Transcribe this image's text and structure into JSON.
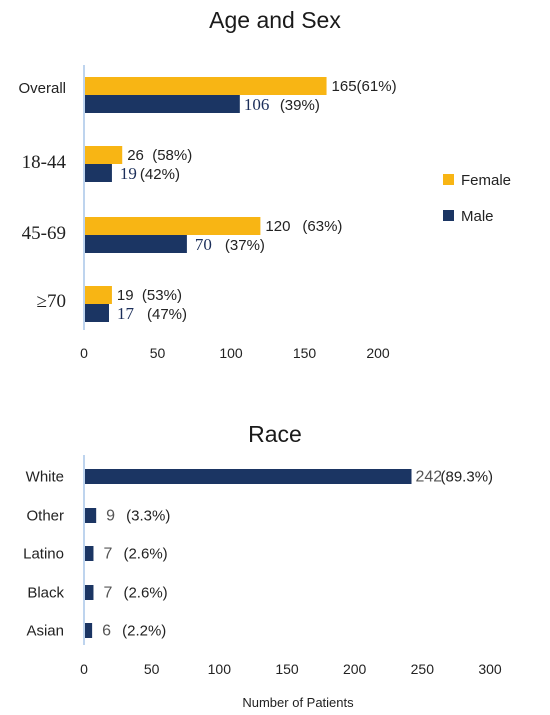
{
  "colors": {
    "female": "#f8b514",
    "male": "#1b3563",
    "axis": "#a9c6e8"
  },
  "chart_data": [
    {
      "type": "bar",
      "orientation": "horizontal",
      "title": "Age and Sex",
      "categories": [
        "Overall",
        "18-44",
        "45-69",
        "≥70"
      ],
      "series": [
        {
          "name": "Female",
          "values": [
            165,
            26,
            120,
            19
          ],
          "labels": [
            "(61%)",
            "(58%)",
            "(63%)",
            "(53%)"
          ]
        },
        {
          "name": "Male",
          "values": [
            106,
            19,
            70,
            17
          ],
          "labels": [
            "(39%)",
            "(42%)",
            "(37%)",
            "(47%)"
          ]
        }
      ],
      "xticks": [
        "0",
        "50",
        "100",
        "150",
        "200"
      ],
      "xlim": [
        0,
        200
      ],
      "legend": "right"
    },
    {
      "type": "bar",
      "orientation": "horizontal",
      "title": "Race",
      "categories": [
        "White",
        "Other",
        "Latino",
        "Black",
        "Asian"
      ],
      "values": [
        242,
        9,
        7,
        7,
        6
      ],
      "labels": [
        "(89.3%)",
        "(3.3%)",
        "(2.6%)",
        "(2.6%)",
        "(2.2%)"
      ],
      "xticks": [
        "0",
        "50",
        "100",
        "150",
        "200",
        "250",
        "300"
      ],
      "xlim": [
        0,
        300
      ],
      "xlabel": "Number of Patients"
    }
  ]
}
